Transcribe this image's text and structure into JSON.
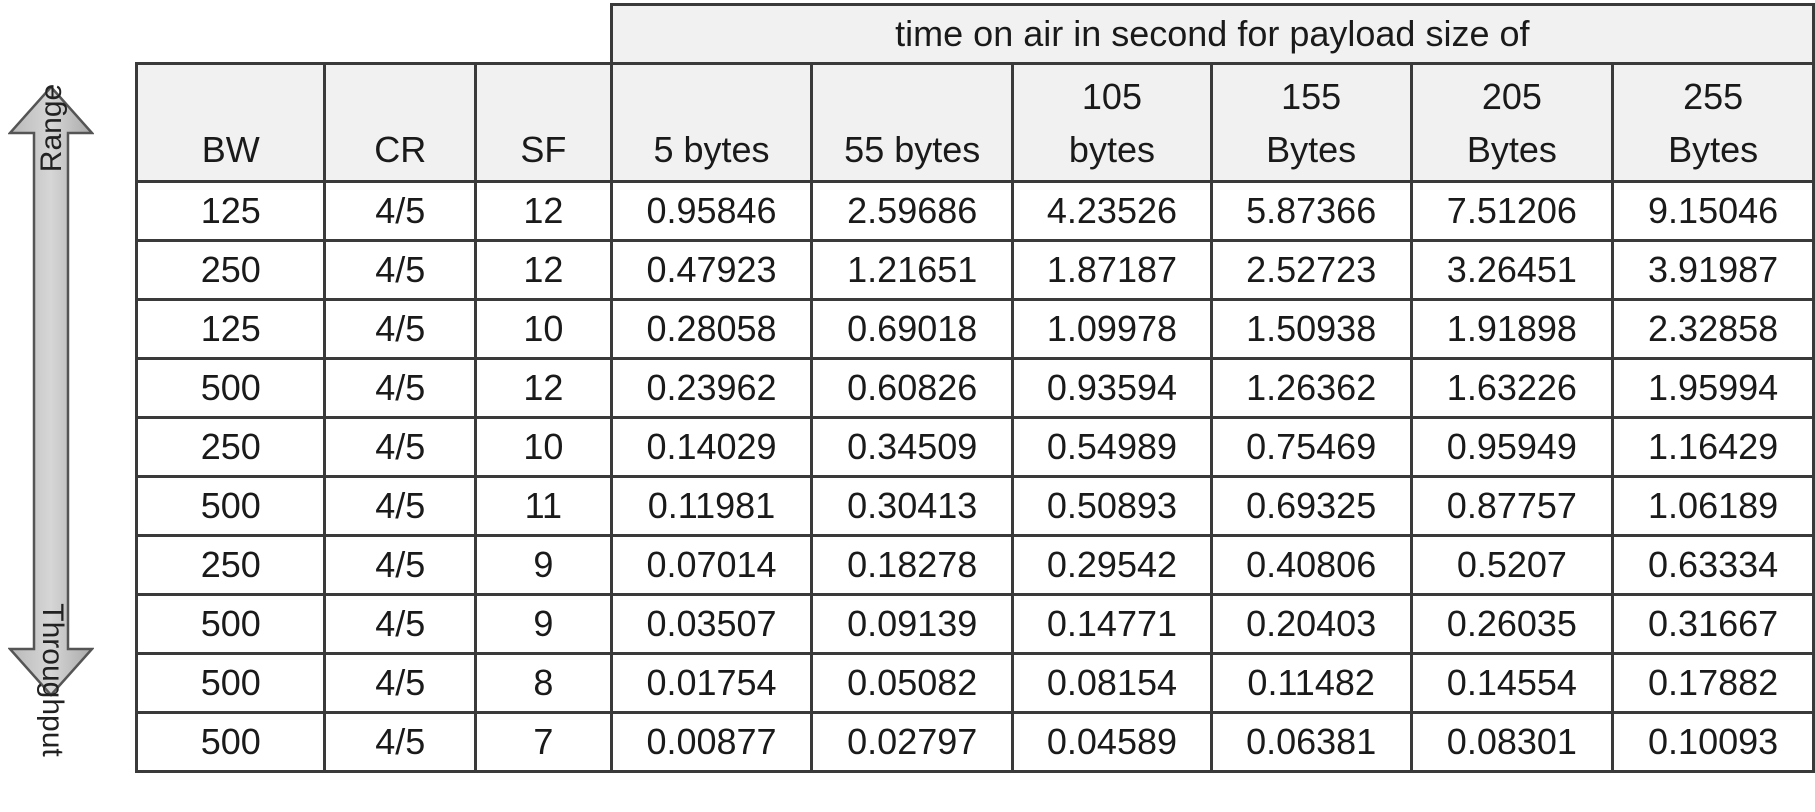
{
  "arrow": {
    "top_label": "Range",
    "bottom_label": "Throughput"
  },
  "table": {
    "super_header": "time on air in second for payload size of",
    "params_headers": [
      "BW",
      "CR",
      "SF"
    ],
    "payload_headers": [
      [
        "5 bytes"
      ],
      [
        "55 bytes"
      ],
      [
        "105",
        "bytes"
      ],
      [
        "155",
        "Bytes"
      ],
      [
        "205",
        "Bytes"
      ],
      [
        "255",
        "Bytes"
      ]
    ],
    "rows": [
      [
        "125",
        "4/5",
        "12",
        "0.95846",
        "2.59686",
        "4.23526",
        "5.87366",
        "7.51206",
        "9.15046"
      ],
      [
        "250",
        "4/5",
        "12",
        "0.47923",
        "1.21651",
        "1.87187",
        "2.52723",
        "3.26451",
        "3.91987"
      ],
      [
        "125",
        "4/5",
        "10",
        "0.28058",
        "0.69018",
        "1.09978",
        "1.50938",
        "1.91898",
        "2.32858"
      ],
      [
        "500",
        "4/5",
        "12",
        "0.23962",
        "0.60826",
        "0.93594",
        "1.26362",
        "1.63226",
        "1.95994"
      ],
      [
        "250",
        "4/5",
        "10",
        "0.14029",
        "0.34509",
        "0.54989",
        "0.75469",
        "0.95949",
        "1.16429"
      ],
      [
        "500",
        "4/5",
        "11",
        "0.11981",
        "0.30413",
        "0.50893",
        "0.69325",
        "0.87757",
        "1.06189"
      ],
      [
        "250",
        "4/5",
        "9",
        "0.07014",
        "0.18278",
        "0.29542",
        "0.40806",
        "0.5207",
        "0.63334"
      ],
      [
        "500",
        "4/5",
        "9",
        "0.03507",
        "0.09139",
        "0.14771",
        "0.20403",
        "0.26035",
        "0.31667"
      ],
      [
        "500",
        "4/5",
        "8",
        "0.01754",
        "0.05082",
        "0.08154",
        "0.11482",
        "0.14554",
        "0.17882"
      ],
      [
        "500",
        "4/5",
        "7",
        "0.00877",
        "0.02797",
        "0.04589",
        "0.06381",
        "0.08301",
        "0.10093"
      ]
    ]
  }
}
